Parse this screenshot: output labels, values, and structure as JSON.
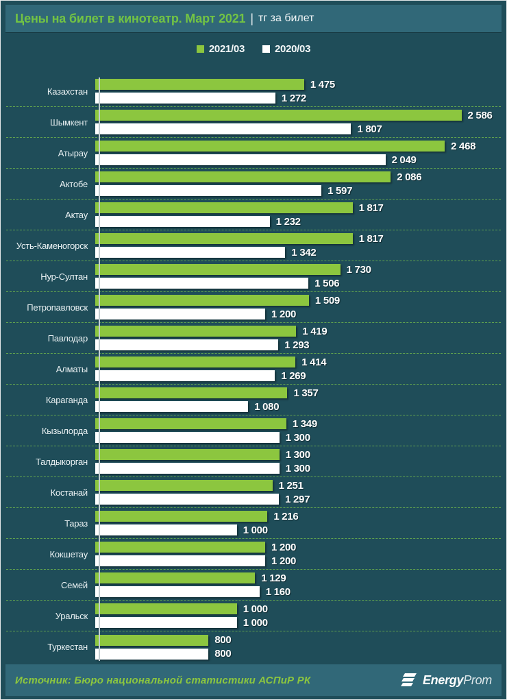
{
  "page": {
    "title_main": "Цены на билет в кинотеатр. Март 2021",
    "title_separator": "|",
    "title_sub": "тг за билет"
  },
  "legend": [
    {
      "label": "2021/03",
      "color": "#8CC63F"
    },
    {
      "label": "2020/03",
      "color": "#FFFFFF"
    }
  ],
  "chart_data": {
    "type": "bar",
    "orientation": "horizontal",
    "title": "Цены на билет в кинотеатр. Март 2021",
    "subtitle": "тг за билет",
    "unit": "тг",
    "legend_position": "top-center",
    "grid": "dashed-row-separators",
    "xlim": [
      0,
      2864
    ],
    "categories": [
      "Казахстан",
      "Шымкент",
      "Атырау",
      "Актобе",
      "Актау",
      "Усть-Каменогорск",
      "Нур-Султан",
      "Петропавловск",
      "Павлодар",
      "Алматы",
      "Караганда",
      "Кызылорда",
      "Талдыкорган",
      "Костанай",
      "Тараз",
      "Кокшетау",
      "Семей",
      "Уральск",
      "Туркестан"
    ],
    "series": [
      {
        "name": "2021/03",
        "color": "#8CC63F",
        "values": [
          1475,
          2586,
          2468,
          2086,
          1817,
          1817,
          1730,
          1509,
          1419,
          1414,
          1357,
          1349,
          1300,
          1251,
          1216,
          1200,
          1129,
          1000,
          800
        ]
      },
      {
        "name": "2020/03",
        "color": "#FFFFFF",
        "values": [
          1272,
          1807,
          2049,
          1597,
          1232,
          1342,
          1506,
          1200,
          1293,
          1269,
          1080,
          1300,
          1300,
          1297,
          1000,
          1200,
          1160,
          1000,
          800
        ]
      }
    ]
  },
  "footer": {
    "source": "Источник: Бюро национальной статистики АСПиР РК",
    "brand_bold": "Energy",
    "brand_light": "Prom"
  },
  "colors": {
    "background": "#1F4D59",
    "band": "#316878",
    "title_green": "#72C344",
    "bar_green": "#8CC63F",
    "bar_white": "#FFFFFF",
    "separator_green": "#61A24E",
    "axis_line": "#C2CDD1"
  }
}
